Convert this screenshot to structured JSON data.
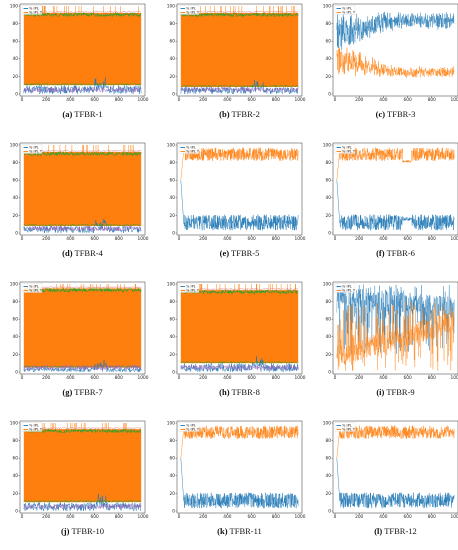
{
  "colors": {
    "ipl": "#1f77b4",
    "ipl_t": "#ff7f0e",
    "green": "#2ca02c",
    "red": "#d62728",
    "purple": "#9467bd"
  },
  "legend": [
    "% IPL",
    "% IPL T"
  ],
  "chart_data": [
    {
      "type": "line",
      "panel": "(a)",
      "title": "TFBR-1",
      "xlim": [
        0,
        1000
      ],
      "ylim": [
        0,
        100
      ],
      "xticks": [
        0,
        200,
        400,
        600,
        800,
        1000
      ],
      "yticks": [
        0,
        20,
        40,
        60,
        80,
        100
      ],
      "pattern": "dense",
      "series": [
        {
          "name": "% IPL",
          "level": [
            0,
            10
          ]
        },
        {
          "name": "% IPL T",
          "level": [
            10,
            92
          ]
        }
      ]
    },
    {
      "type": "line",
      "panel": "(b)",
      "title": "TFBR-2",
      "xlim": [
        0,
        1000
      ],
      "ylim": [
        0,
        100
      ],
      "xticks": [
        0,
        200,
        400,
        600,
        800,
        1000
      ],
      "yticks": [
        0,
        20,
        40,
        60,
        80,
        100
      ],
      "pattern": "dense",
      "series": [
        {
          "name": "% IPL",
          "level": [
            0,
            8
          ]
        },
        {
          "name": "% IPL T",
          "level": [
            8,
            92
          ]
        }
      ]
    },
    {
      "type": "line",
      "panel": "(c)",
      "title": "TFBR-3",
      "xlim": [
        0,
        1000
      ],
      "ylim": [
        0,
        100
      ],
      "xticks": [
        0,
        200,
        400,
        600,
        800,
        1000
      ],
      "yticks": [
        0,
        20,
        40,
        60,
        80,
        100
      ],
      "pattern": "split_noisy",
      "series": [
        {
          "name": "% IPL",
          "level": [
            70,
            100
          ]
        },
        {
          "name": "% IPL T",
          "level": [
            10,
            35
          ]
        }
      ]
    },
    {
      "type": "line",
      "panel": "(d)",
      "title": "TFBR-4",
      "xlim": [
        0,
        1000
      ],
      "ylim": [
        0,
        100
      ],
      "xticks": [
        0,
        200,
        400,
        600,
        800,
        1000
      ],
      "yticks": [
        0,
        20,
        40,
        60,
        80,
        100
      ],
      "pattern": "dense",
      "series": [
        {
          "name": "% IPL",
          "level": [
            0,
            8
          ]
        },
        {
          "name": "% IPL T",
          "level": [
            8,
            92
          ]
        }
      ]
    },
    {
      "type": "line",
      "panel": "(e)",
      "title": "TFBR-5",
      "xlim": [
        0,
        1000
      ],
      "ylim": [
        0,
        100
      ],
      "xticks": [
        0,
        200,
        400,
        600,
        800,
        1000
      ],
      "yticks": [
        0,
        20,
        40,
        60,
        80,
        100
      ],
      "pattern": "split_band",
      "series": [
        {
          "name": "% IPL",
          "level": [
            0,
            20
          ]
        },
        {
          "name": "% IPL T",
          "level": [
            80,
            100
          ]
        }
      ]
    },
    {
      "type": "line",
      "panel": "(f)",
      "title": "TFBR-6",
      "xlim": [
        0,
        1000
      ],
      "ylim": [
        0,
        100
      ],
      "xticks": [
        0,
        200,
        400,
        600,
        800,
        1000
      ],
      "yticks": [
        0,
        20,
        40,
        60,
        80,
        100
      ],
      "pattern": "split_band",
      "series": [
        {
          "name": "% IPL",
          "level": [
            0,
            20
          ]
        },
        {
          "name": "% IPL T",
          "level": [
            80,
            100
          ]
        }
      ]
    },
    {
      "type": "line",
      "panel": "(g)",
      "title": "TFBR-7",
      "xlim": [
        0,
        1000
      ],
      "ylim": [
        0,
        100
      ],
      "xticks": [
        0,
        200,
        400,
        600,
        800,
        1000
      ],
      "yticks": [
        0,
        20,
        40,
        60,
        80,
        100
      ],
      "pattern": "dense",
      "series": [
        {
          "name": "% IPL",
          "level": [
            0,
            5
          ]
        },
        {
          "name": "% IPL T",
          "level": [
            5,
            95
          ]
        }
      ]
    },
    {
      "type": "line",
      "panel": "(h)",
      "title": "TFBR-8",
      "xlim": [
        0,
        1000
      ],
      "ylim": [
        0,
        100
      ],
      "xticks": [
        0,
        200,
        400,
        600,
        800,
        1000
      ],
      "yticks": [
        0,
        20,
        40,
        60,
        80,
        100
      ],
      "pattern": "dense",
      "series": [
        {
          "name": "% IPL",
          "level": [
            0,
            10
          ]
        },
        {
          "name": "% IPL T",
          "level": [
            10,
            93
          ]
        }
      ]
    },
    {
      "type": "line",
      "panel": "(i)",
      "title": "TFBR-9",
      "xlim": [
        0,
        1000
      ],
      "ylim": [
        0,
        100
      ],
      "xticks": [
        0,
        200,
        400,
        600,
        800,
        1000
      ],
      "yticks": [
        0,
        20,
        40,
        60,
        80,
        100
      ],
      "pattern": "crossing",
      "series": [
        {
          "name": "% IPL",
          "level": [
            20,
            100
          ]
        },
        {
          "name": "% IPL T",
          "level": [
            0,
            80
          ]
        }
      ]
    },
    {
      "type": "line",
      "panel": "(j)",
      "title": "TFBR-10",
      "xlim": [
        0,
        1000
      ],
      "ylim": [
        0,
        100
      ],
      "xticks": [
        0,
        200,
        400,
        600,
        800,
        1000
      ],
      "yticks": [
        0,
        20,
        40,
        60,
        80,
        100
      ],
      "pattern": "dense",
      "series": [
        {
          "name": "% IPL",
          "level": [
            0,
            10
          ]
        },
        {
          "name": "% IPL T",
          "level": [
            10,
            93
          ]
        }
      ]
    },
    {
      "type": "line",
      "panel": "(k)",
      "title": "TFBR-11",
      "xlim": [
        0,
        1000
      ],
      "ylim": [
        0,
        100
      ],
      "xticks": [
        0,
        200,
        400,
        600,
        800,
        1000
      ],
      "yticks": [
        0,
        20,
        40,
        60,
        80,
        100
      ],
      "pattern": "split_band",
      "series": [
        {
          "name": "% IPL",
          "level": [
            0,
            20
          ]
        },
        {
          "name": "% IPL T",
          "level": [
            80,
            100
          ]
        }
      ]
    },
    {
      "type": "line",
      "panel": "(l)",
      "title": "TFBR-12",
      "xlim": [
        0,
        1000
      ],
      "ylim": [
        0,
        100
      ],
      "xticks": [
        0,
        200,
        400,
        600,
        800,
        1000
      ],
      "yticks": [
        0,
        20,
        40,
        60,
        80,
        100
      ],
      "pattern": "split_band",
      "series": [
        {
          "name": "% IPL",
          "level": [
            0,
            20
          ]
        },
        {
          "name": "% IPL T",
          "level": [
            80,
            100
          ]
        }
      ]
    }
  ]
}
